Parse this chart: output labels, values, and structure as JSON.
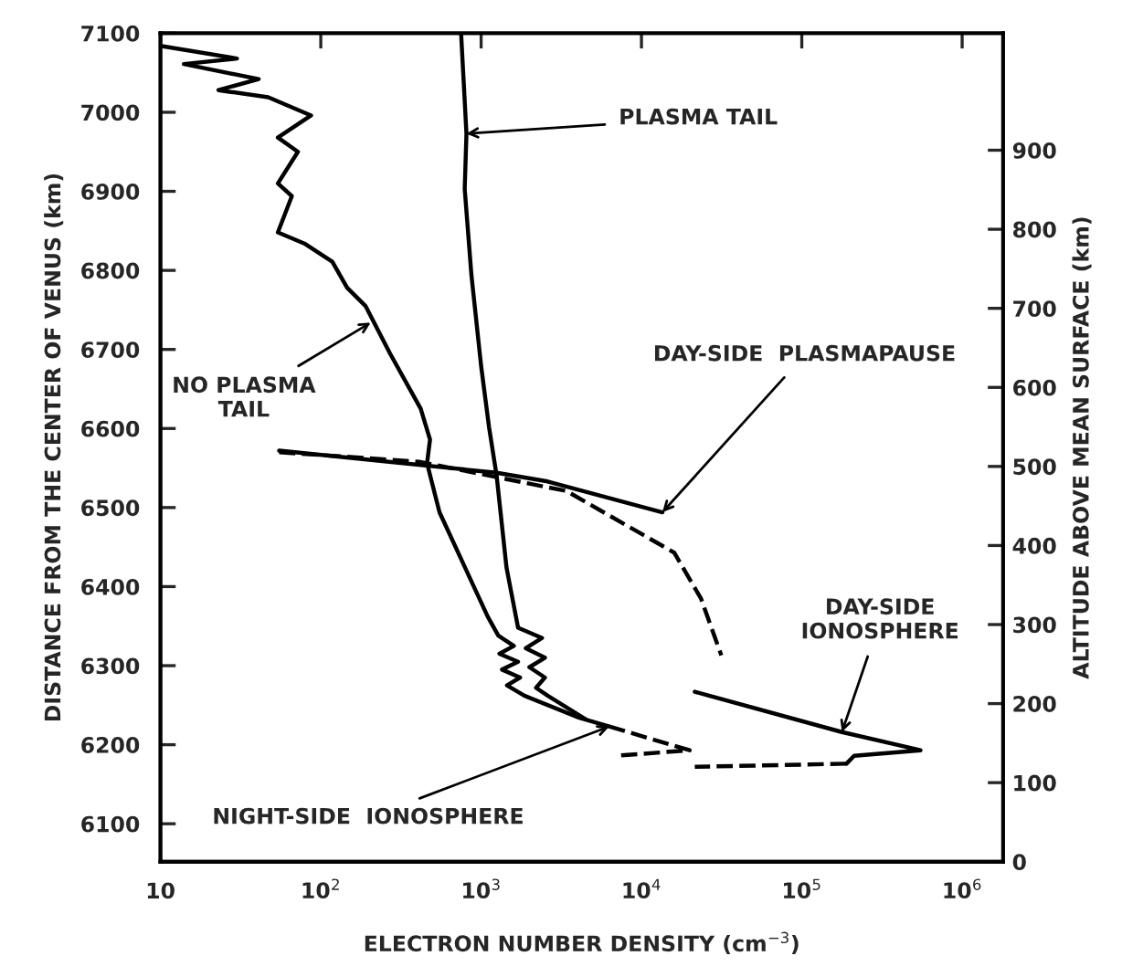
{
  "chart_data": {
    "type": "line",
    "xlabel": "ELECTRON NUMBER DENSITY (cm$^{−3}$)",
    "ylabel": "DISTANCE FROM THE CENTER OF VENUS (km)",
    "y2label": "ALTITUDE ABOVE MEAN SURFACE (km)",
    "log": "x",
    "grid": false,
    "legend": false,
    "marker": "none",
    "xlim": [
      10,
      1800000
    ],
    "xticks": [
      10,
      {
        "value": 100,
        "label": "10$^{2}$"
      },
      {
        "value": 1000,
        "label": "10$^{3}$"
      },
      {
        "value": 10000,
        "label": "10$^{4}$"
      },
      {
        "value": 100000,
        "label": "10$^{5}$"
      },
      {
        "value": 1000000,
        "label": "10$^{6}$"
      }
    ],
    "ylim": [
      6052,
      7100
    ],
    "yticks": [
      6100,
      6200,
      6300,
      6400,
      6500,
      6600,
      6700,
      6800,
      6900,
      7000,
      7100
    ],
    "y2lim": [
      0,
      1048
    ],
    "y2ticks": [
      0,
      100,
      200,
      300,
      400,
      500,
      600,
      700,
      800,
      900
    ],
    "series": [
      {
        "color": "#000000",
        "line_style": "solid",
        "x": [
          10,
          30,
          14,
          41,
          23,
          47,
          87,
          54,
          72,
          54,
          66,
          54,
          79,
          118,
          146,
          190,
          270,
          420,
          480,
          460,
          550,
          1100,
          1280,
          1600,
          1300,
          1700,
          1350,
          1750,
          1450,
          1860,
          4100,
          6300
        ],
        "values": [
          7084,
          7068,
          7061,
          7042,
          7028,
          7019,
          6996,
          6968,
          6950,
          6910,
          6894,
          6848,
          6834,
          6811,
          6778,
          6755,
          6695,
          6625,
          6586,
          6556,
          6494,
          6362,
          6338,
          6325,
          6315,
          6305,
          6295,
          6285,
          6275,
          6262,
          6234,
          6223
        ]
      },
      {
        "color": "#000000",
        "line_style": "solid",
        "x": [
          750,
          810,
          790,
          870,
          1000,
          1120,
          1250,
          1440,
          1700,
          2400,
          1900,
          2500,
          2000,
          2500,
          2200,
          2600,
          4500
        ],
        "values": [
          7100,
          6973,
          6903,
          6794,
          6679,
          6602,
          6540,
          6424,
          6348,
          6335,
          6322,
          6310,
          6298,
          6285,
          6272,
          6262,
          6232
        ]
      },
      {
        "color": "#000000",
        "line_style": "dashed",
        "x": [
          6300,
          20000,
          6900
        ],
        "values": [
          6223,
          6193,
          6186
        ]
      },
      {
        "color": "#000000",
        "line_style": "solid",
        "x": [
          55,
          1250,
          2600,
          13500
        ],
        "values": [
          6572,
          6544,
          6533,
          6494
        ]
      },
      {
        "color": "#000000",
        "line_style": "dashed",
        "x": [
          55,
          410,
          3400,
          16000,
          23500,
          31500
        ],
        "values": [
          6570,
          6558,
          6521,
          6443,
          6385,
          6313
        ]
      },
      {
        "color": "#000000",
        "line_style": "solid",
        "x": [
          21500,
          178000,
          550000,
          212000,
          190000
        ],
        "values": [
          6267,
          6216,
          6193,
          6186,
          6176
        ]
      },
      {
        "color": "#000000",
        "line_style": "dashed",
        "x": [
          190000,
          21500
        ],
        "values": [
          6176,
          6172
        ]
      }
    ],
    "annotations": [
      {
        "text": "PLASMA TAIL",
        "x": 810,
        "y": 6973
      },
      {
        "text": "NO PLASMA\nTAIL",
        "x": 205,
        "y": 6734
      },
      {
        "text": "DAY-SIDE  PLASMAPAUSE",
        "x": 13500,
        "y": 6494
      },
      {
        "text": "DAY-SIDE\nIONOSPHERE",
        "x": 178000,
        "y": 6216
      },
      {
        "text": "NIGHT-SIDE  IONOSPHERE",
        "x": 6300,
        "y": 6223
      }
    ]
  }
}
